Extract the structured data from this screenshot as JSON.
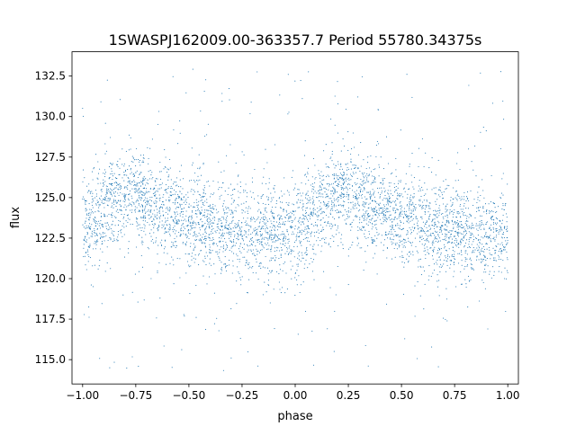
{
  "chart_data": {
    "type": "scatter",
    "title": "1SWASPJ162009.00-363357.7 Period 55780.34375s",
    "xlabel": "phase",
    "ylabel": "flux",
    "xlim": [
      -1.05,
      1.05
    ],
    "ylim": [
      113.5,
      134.0
    ],
    "xticks": [
      -1.0,
      -0.75,
      -0.5,
      -0.25,
      0.0,
      0.25,
      0.5,
      0.75,
      1.0
    ],
    "xtick_labels": [
      "−1.00",
      "−0.75",
      "−0.50",
      "−0.25",
      "0.00",
      "0.25",
      "0.50",
      "0.75",
      "1.00"
    ],
    "yticks": [
      115.0,
      117.5,
      120.0,
      122.5,
      125.0,
      127.5,
      130.0,
      132.5
    ],
    "ytick_labels": [
      "115.0",
      "117.5",
      "120.0",
      "122.5",
      "125.0",
      "127.5",
      "130.0",
      "132.5"
    ],
    "grid": false,
    "marker_color": "#1f77b4",
    "phase_profile": {
      "phase": [
        0.0,
        0.05,
        0.1,
        0.15,
        0.2,
        0.25,
        0.3,
        0.35,
        0.4,
        0.45,
        0.5,
        0.55,
        0.6,
        0.65,
        0.7,
        0.75,
        0.8,
        0.85,
        0.9,
        0.95,
        1.0
      ],
      "flux_center": [
        122.9,
        123.6,
        124.3,
        124.8,
        125.1,
        125.1,
        124.8,
        124.4,
        124.2,
        124.0,
        123.7,
        123.4,
        123.2,
        123.1,
        123.0,
        122.9,
        122.8,
        122.7,
        122.8,
        122.9,
        122.9
      ],
      "scatter_sd": 1.4
    }
  }
}
